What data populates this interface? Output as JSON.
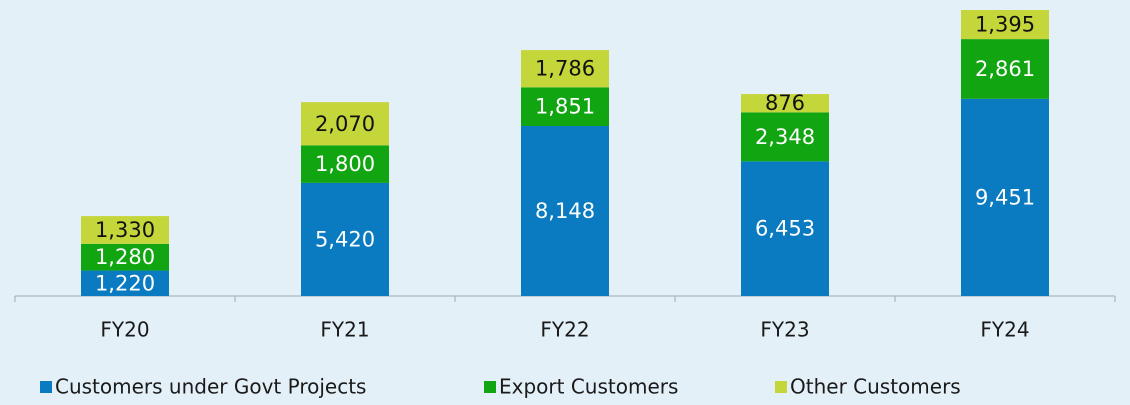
{
  "chart_data": {
    "type": "stacked_bar",
    "categories": [
      "FY20",
      "FY21",
      "FY22",
      "FY23",
      "FY24"
    ],
    "series": [
      {
        "name": "Customers under Govt Projects",
        "color": "#0a7bc1",
        "values": [
          1220,
          5420,
          8148,
          6453,
          9451
        ],
        "value_labels": [
          "1,220",
          "5,420",
          "8,148",
          "6,453",
          "9,451"
        ]
      },
      {
        "name": "Export Customers",
        "color": "#12a512",
        "values": [
          1280,
          1800,
          1851,
          2348,
          2861
        ],
        "value_labels": [
          "1,280",
          "1,800",
          "1,851",
          "2,348",
          "2,861"
        ]
      },
      {
        "name": "Other Customers",
        "color": "#c5d63a",
        "values": [
          1330,
          2070,
          1786,
          876,
          1395
        ],
        "value_labels": [
          "1,330",
          "2,070",
          "1,786",
          "876",
          "1,395"
        ]
      }
    ]
  }
}
